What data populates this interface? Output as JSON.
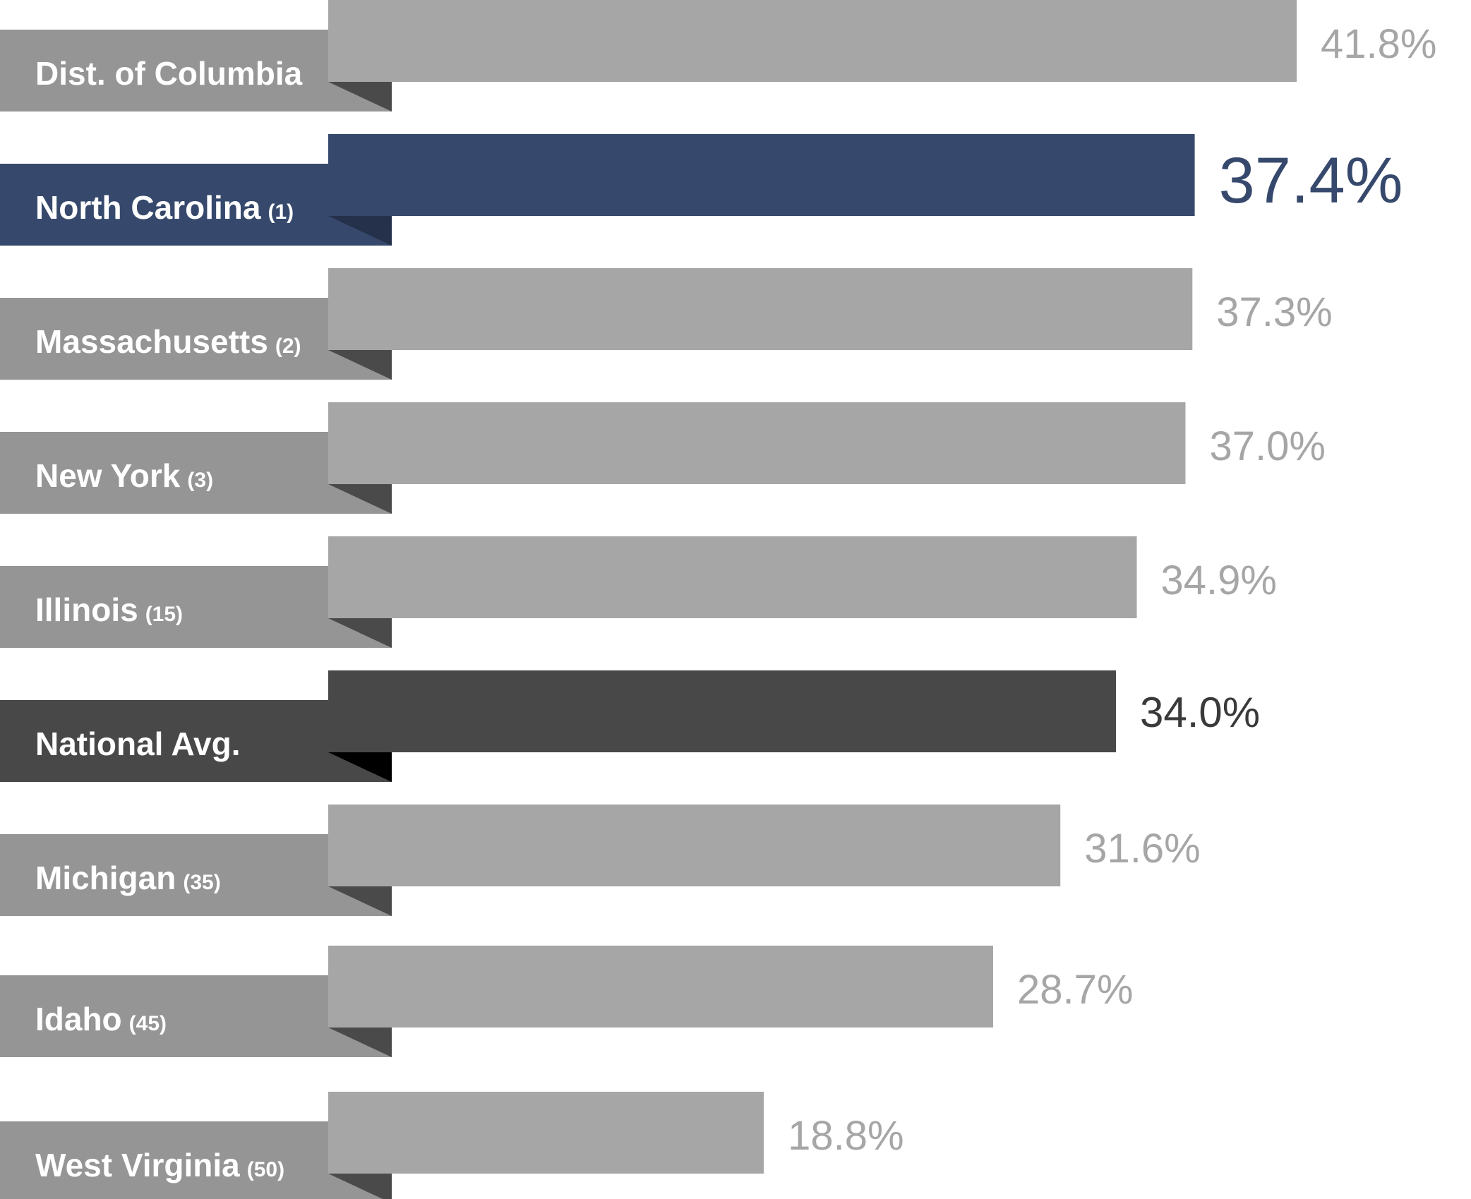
{
  "chart_data": {
    "type": "bar",
    "orientation": "horizontal",
    "categories": [
      "Dist. of Columbia",
      "North Carolina",
      "Massachusetts",
      "New York",
      "Illinois",
      "National Avg.",
      "Michigan",
      "Idaho",
      "West Virginia"
    ],
    "ranks": [
      "",
      "(1)",
      "(2)",
      "(3)",
      "(15)",
      "",
      "(35)",
      "(45)",
      "(50)"
    ],
    "values": [
      41.8,
      37.4,
      37.3,
      37.0,
      34.9,
      34.0,
      31.6,
      28.7,
      18.8
    ],
    "value_labels": [
      "41.8%",
      "37.4%",
      "37.3%",
      "37.0%",
      "34.9%",
      "34.0%",
      "31.6%",
      "28.7%",
      "18.8%"
    ],
    "highlights": [
      "normal",
      "primary",
      "normal",
      "normal",
      "normal",
      "average",
      "normal",
      "normal",
      "normal"
    ],
    "grid": false,
    "legend": "none"
  },
  "colors": {
    "normal": {
      "bar": "#a6a6a6",
      "tab": "#959595",
      "fold": "#4a4a4a",
      "value": "#a6a6a6"
    },
    "primary": {
      "bar": "#36496d",
      "tab": "#36496d",
      "fold": "#25304a",
      "value": "#36496d"
    },
    "average": {
      "bar": "#484848",
      "tab": "#484848",
      "fold": "#000000",
      "value": "#3a3a3a"
    },
    "label_text": "#ffffff"
  }
}
